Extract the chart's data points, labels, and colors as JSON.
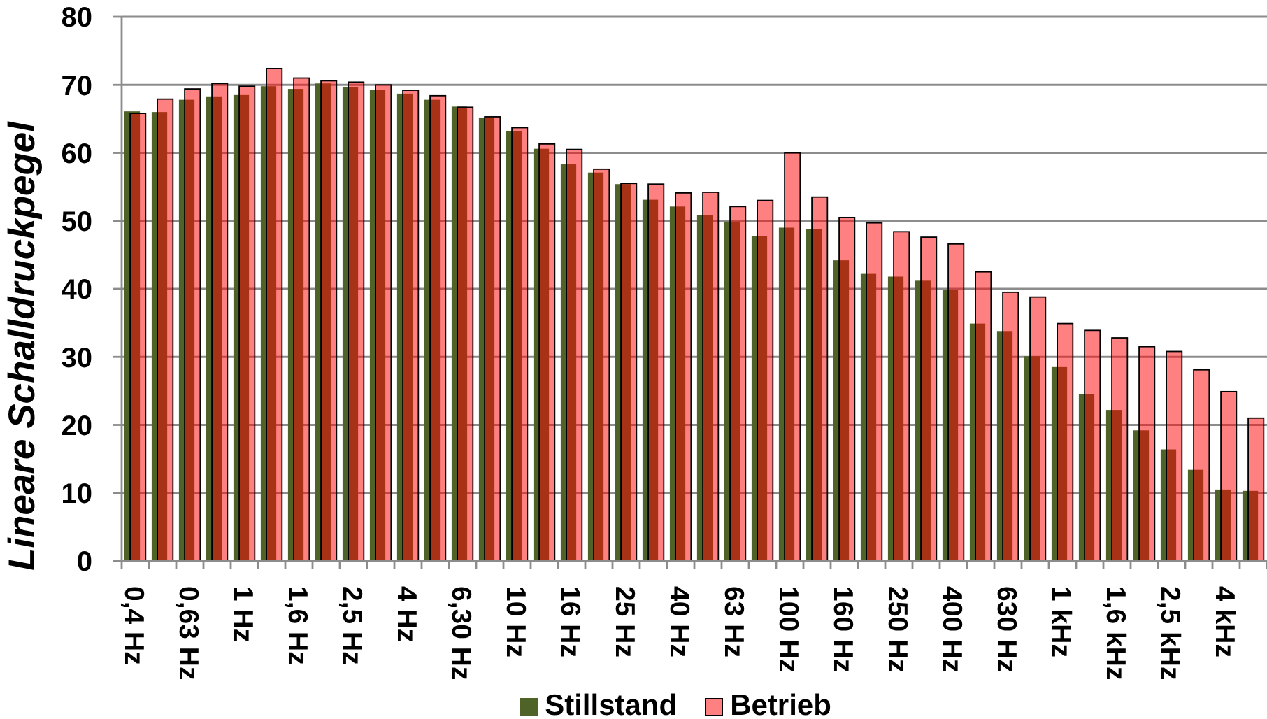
{
  "chart_data": {
    "type": "bar",
    "ylabel": "Lineare Schalldruckpegel",
    "categories": [
      "0,4 Hz",
      null,
      "0,63 Hz",
      null,
      "1 Hz",
      null,
      "1,6 Hz",
      null,
      "2,5 Hz",
      null,
      "4 Hz",
      null,
      "6,30 Hz",
      null,
      "10 Hz",
      null,
      "16 Hz",
      null,
      "25 Hz",
      null,
      "40 Hz",
      null,
      "63 Hz",
      null,
      "100 Hz",
      null,
      "160 Hz",
      null,
      "250 Hz",
      null,
      "400 Hz",
      null,
      "630 Hz",
      null,
      "1 kHz",
      null,
      "1,6 kHz",
      null,
      "2,5 kHz",
      null,
      "4 kHz",
      null
    ],
    "series": [
      {
        "name": "Stillstand",
        "color": "#4f6228",
        "values": [
          66.1,
          66.0,
          67.8,
          68.3,
          68.5,
          69.8,
          69.4,
          70.2,
          69.7,
          69.3,
          68.7,
          67.8,
          66.8,
          65.2,
          63.2,
          60.6,
          58.3,
          57.1,
          55.4,
          53.1,
          52.1,
          50.9,
          49.9,
          47.8,
          49.0,
          48.8,
          44.2,
          42.2,
          41.8,
          41.2,
          39.8,
          34.9,
          33.8,
          30.1,
          28.5,
          24.5,
          22.2,
          19.2,
          16.4,
          13.4,
          10.5,
          10.3
        ]
      },
      {
        "name": "Betrieb",
        "color": "#ff8080",
        "values": [
          65.8,
          67.9,
          69.4,
          70.2,
          69.8,
          72.4,
          71.0,
          70.6,
          70.4,
          70.0,
          69.2,
          68.4,
          66.7,
          65.3,
          63.7,
          61.3,
          60.5,
          57.6,
          55.5,
          55.4,
          54.1,
          54.2,
          52.1,
          53.0,
          60.0,
          53.5,
          50.5,
          49.7,
          48.4,
          47.6,
          46.6,
          42.5,
          39.5,
          38.8,
          34.9,
          33.9,
          32.8,
          31.5,
          30.8,
          28.1,
          24.9,
          21.0
        ]
      }
    ],
    "ylim": [
      0,
      80
    ],
    "yticks": [
      0,
      10,
      20,
      30,
      40,
      50,
      60,
      70,
      80
    ],
    "grid": "y",
    "legend": "bottom"
  }
}
